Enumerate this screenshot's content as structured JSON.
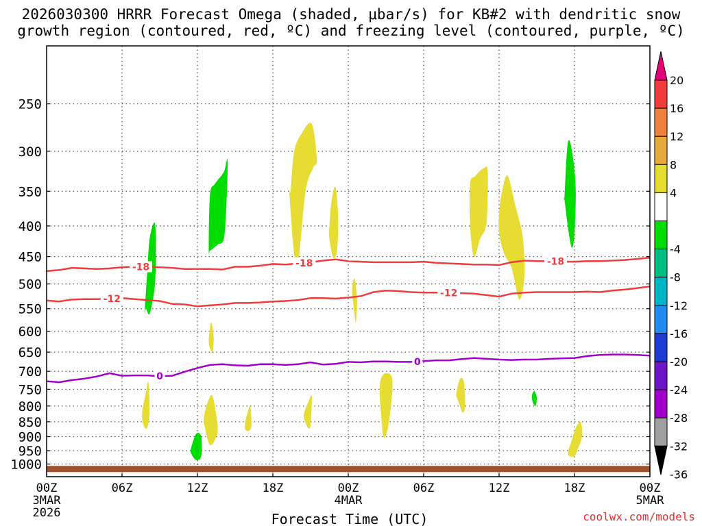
{
  "title_line1": "2026030300 HRRR Forecast Omega (shaded, μbar/s) for KB#2 with dendritic snow",
  "title_line2": "growth region (contoured, red, ºC) and freezing level (contoured, purple, ºC)",
  "xlabel": "Forecast Time (UTC)",
  "credit": "coolwx.com/models",
  "chart_data": {
    "type": "contour",
    "title": "2026030300 HRRR Forecast Omega (shaded, μbar/s) for KB#2 with dendritic snow growth region (contoured, red, ºC) and freezing level (contoured, purple, ºC)",
    "xlabel": "Forecast Time (UTC)",
    "ylabel": "",
    "x_range_hours": [
      0,
      48
    ],
    "y_axis": "pressure (hPa), log scale, inverted",
    "ylim": [
      1050,
      200
    ],
    "grid": true,
    "x_ticks": [
      {
        "hour": 0,
        "label": "00Z",
        "sub1": "3MAR",
        "sub2": "2026"
      },
      {
        "hour": 6,
        "label": "06Z"
      },
      {
        "hour": 12,
        "label": "12Z"
      },
      {
        "hour": 18,
        "label": "18Z"
      },
      {
        "hour": 24,
        "label": "00Z",
        "sub1": "4MAR"
      },
      {
        "hour": 30,
        "label": "06Z"
      },
      {
        "hour": 36,
        "label": "12Z"
      },
      {
        "hour": 42,
        "label": "18Z"
      },
      {
        "hour": 48,
        "label": "00Z",
        "sub1": "5MAR"
      }
    ],
    "y_ticks": [
      250,
      300,
      350,
      400,
      450,
      500,
      550,
      600,
      650,
      700,
      750,
      800,
      850,
      900,
      950,
      1000
    ],
    "colorbar": {
      "labels": [
        "20",
        "16",
        "12",
        "8",
        "4",
        "-4",
        "-8",
        "-12",
        "-16",
        "-20",
        "-24",
        "-28",
        "-32",
        "-36"
      ],
      "colors_top_to_bottom": [
        "#e60078",
        "#f03c3c",
        "#f0823c",
        "#e6aa3c",
        "#e6dc32",
        "#ffffff",
        "#00dc00",
        "#00be82",
        "#00b4c8",
        "#1e8cf0",
        "#1e3cd2",
        "#6e14c8",
        "#a000c8",
        "#a0a0a0",
        "#000000"
      ]
    },
    "contours": [
      {
        "name": "-18",
        "color": "#f03c3c",
        "x": [
          0,
          1,
          2,
          3,
          4,
          5,
          6,
          7,
          8,
          9,
          10,
          11,
          12,
          13,
          14,
          15,
          16,
          17,
          18,
          19,
          20,
          21,
          22,
          23,
          24,
          25,
          26,
          27,
          28,
          29,
          30,
          31,
          32,
          33,
          34,
          35,
          36,
          37,
          38,
          39,
          40,
          41,
          42,
          43,
          44,
          45,
          46,
          47,
          48
        ],
        "y": [
          476,
          474,
          470,
          471,
          472,
          471,
          469,
          468,
          468,
          469,
          470,
          472,
          472,
          472,
          473,
          468,
          468,
          466,
          463,
          464,
          462,
          460,
          457,
          455,
          458,
          459,
          460,
          460,
          460,
          460,
          459,
          461,
          462,
          463,
          464,
          464,
          465,
          460,
          457,
          458,
          458,
          459,
          459,
          458,
          458,
          457,
          456,
          454,
          452
        ],
        "label_hours": [
          7.5,
          20.5,
          40.5
        ]
      },
      {
        "name": "-12",
        "color": "#f03c3c",
        "x": [
          0,
          1,
          2,
          3,
          4,
          5,
          6,
          7,
          8,
          9,
          10,
          11,
          12,
          13,
          14,
          15,
          16,
          17,
          18,
          19,
          20,
          21,
          22,
          23,
          24,
          25,
          26,
          27,
          28,
          29,
          30,
          31,
          32,
          33,
          34,
          35,
          36,
          37,
          38,
          39,
          40,
          41,
          42,
          43,
          44,
          45,
          46,
          47,
          48
        ],
        "y": [
          533,
          535,
          531,
          530,
          530,
          529,
          528,
          530,
          532,
          534,
          540,
          541,
          545,
          543,
          541,
          538,
          538,
          537,
          535,
          534,
          532,
          528,
          528,
          529,
          527,
          524,
          516,
          513,
          514,
          516,
          517,
          517,
          517,
          518,
          519,
          522,
          525,
          519,
          517,
          516,
          516,
          516,
          516,
          515,
          516,
          513,
          511,
          508,
          505
        ],
        "label_hours": [
          5.2,
          32
        ]
      },
      {
        "name": "0",
        "color": "#a000c8",
        "x": [
          0,
          1,
          2,
          3,
          4,
          5,
          6,
          7,
          8,
          9,
          10,
          11,
          12,
          13,
          14,
          15,
          16,
          17,
          18,
          19,
          20,
          21,
          22,
          23,
          24,
          25,
          26,
          27,
          28,
          29,
          30,
          31,
          32,
          33,
          34,
          35,
          36,
          37,
          38,
          39,
          40,
          41,
          42,
          43,
          44,
          45,
          46,
          47,
          48
        ],
        "y": [
          727,
          730,
          724,
          720,
          714,
          705,
          712,
          711,
          711,
          713,
          712,
          701,
          691,
          683,
          681,
          684,
          685,
          681,
          681,
          683,
          681,
          676,
          682,
          680,
          675,
          676,
          674,
          674,
          675,
          675,
          673,
          671,
          671,
          668,
          665,
          667,
          669,
          670,
          669,
          669,
          667,
          666,
          665,
          660,
          657,
          656,
          656,
          657,
          659
        ],
        "label_hours": [
          9,
          29.5
        ]
      }
    ],
    "shaded_regions": [
      {
        "color": "#00dc00",
        "x": [
          7.8,
          8.0,
          8.2,
          8.6,
          8.7,
          8.6,
          8.2,
          7.9
        ],
        "y": [
          560,
          480,
          420,
          395,
          440,
          505,
          560,
          550
        ]
      },
      {
        "color": "#00dc00",
        "x": [
          12.9,
          13.0,
          13.4,
          14.1,
          14.4,
          14.3,
          14.1,
          13.6,
          13.0
        ],
        "y": [
          440,
          355,
          340,
          325,
          310,
          370,
          420,
          430,
          440
        ]
      },
      {
        "color": "#e6dc32",
        "x": [
          19.4,
          19.7,
          20.3,
          21.1,
          21.5,
          21.2,
          20.6,
          19.9,
          19.3
        ],
        "y": [
          350,
          300,
          280,
          270,
          310,
          320,
          350,
          470,
          350
        ]
      },
      {
        "color": "#e6dc32",
        "x": [
          22.5,
          22.7,
          23.0,
          23.2,
          23.1,
          22.8,
          22.5
        ],
        "y": [
          400,
          360,
          345,
          390,
          440,
          452,
          420
        ]
      },
      {
        "color": "#00dc00",
        "x": [
          41.2,
          41.4,
          41.6,
          41.9,
          42.1,
          42.0,
          41.8,
          41.5,
          41.2
        ],
        "y": [
          360,
          300,
          288,
          310,
          350,
          410,
          435,
          405,
          360
        ]
      },
      {
        "color": "#e6dc32",
        "x": [
          33.7,
          34.1,
          34.8,
          35.1,
          35.0,
          34.5,
          34.0,
          33.7
        ],
        "y": [
          340,
          330,
          320,
          325,
          395,
          420,
          450,
          400
        ]
      },
      {
        "color": "#e6dc32",
        "x": [
          36.0,
          36.3,
          36.7,
          37.3,
          37.9,
          38.0,
          37.6,
          37.0,
          36.4,
          36.0
        ],
        "y": [
          380,
          345,
          330,
          370,
          420,
          490,
          530,
          470,
          445,
          410
        ]
      },
      {
        "color": "#e6dc32",
        "x": [
          24.3,
          24.5,
          24.7,
          24.6,
          24.4
        ],
        "y": [
          510,
          490,
          530,
          580,
          540
        ]
      },
      {
        "color": "#e6dc32",
        "x": [
          12.9,
          13.1,
          13.3,
          13.2,
          13.0
        ],
        "y": [
          620,
          580,
          615,
          650,
          640
        ]
      },
      {
        "color": "#e6dc32",
        "x": [
          7.6,
          7.9,
          8.1,
          8.2,
          8.0,
          7.7
        ],
        "y": [
          820,
          760,
          730,
          820,
          870,
          860
        ]
      },
      {
        "color": "#e6dc32",
        "x": [
          12.5,
          12.8,
          13.2,
          13.6,
          13.5,
          13.0,
          12.6
        ],
        "y": [
          840,
          790,
          770,
          860,
          900,
          930,
          870
        ]
      },
      {
        "color": "#00dc00",
        "x": [
          11.5,
          11.9,
          12.3,
          12.3,
          11.9,
          11.5
        ],
        "y": [
          940,
          890,
          900,
          970,
          985,
          960
        ]
      },
      {
        "color": "#e6dc32",
        "x": [
          15.8,
          16.0,
          16.2,
          16.3,
          16.1,
          15.8
        ],
        "y": [
          850,
          820,
          800,
          860,
          880,
          875
        ]
      },
      {
        "color": "#e6dc32",
        "x": [
          20.5,
          20.8,
          21.1,
          21.0,
          20.8,
          20.5
        ],
        "y": [
          820,
          790,
          770,
          860,
          870,
          840
        ]
      },
      {
        "color": "#e6dc32",
        "x": [
          26.6,
          27.0,
          27.5,
          27.4,
          27.1,
          26.8,
          26.6,
          26.5
        ],
        "y": [
          720,
          705,
          720,
          800,
          880,
          900,
          820,
          760
        ]
      },
      {
        "color": "#e6dc32",
        "x": [
          32.6,
          32.9,
          33.2,
          33.3,
          33.1,
          32.8,
          32.6
        ],
        "y": [
          760,
          720,
          730,
          800,
          820,
          790,
          770
        ]
      },
      {
        "color": "#00dc00",
        "x": [
          38.6,
          38.8,
          39.0,
          38.9,
          38.7
        ],
        "y": [
          770,
          755,
          775,
          800,
          790
        ]
      },
      {
        "color": "#e6dc32",
        "x": [
          41.5,
          41.8,
          42.1,
          42.5,
          42.6,
          42.3,
          42.0,
          41.6
        ],
        "y": [
          955,
          910,
          870,
          850,
          900,
          940,
          970,
          970
        ]
      }
    ],
    "ground_bar": {
      "color": "#a0522d",
      "pressure": 1010
    }
  }
}
